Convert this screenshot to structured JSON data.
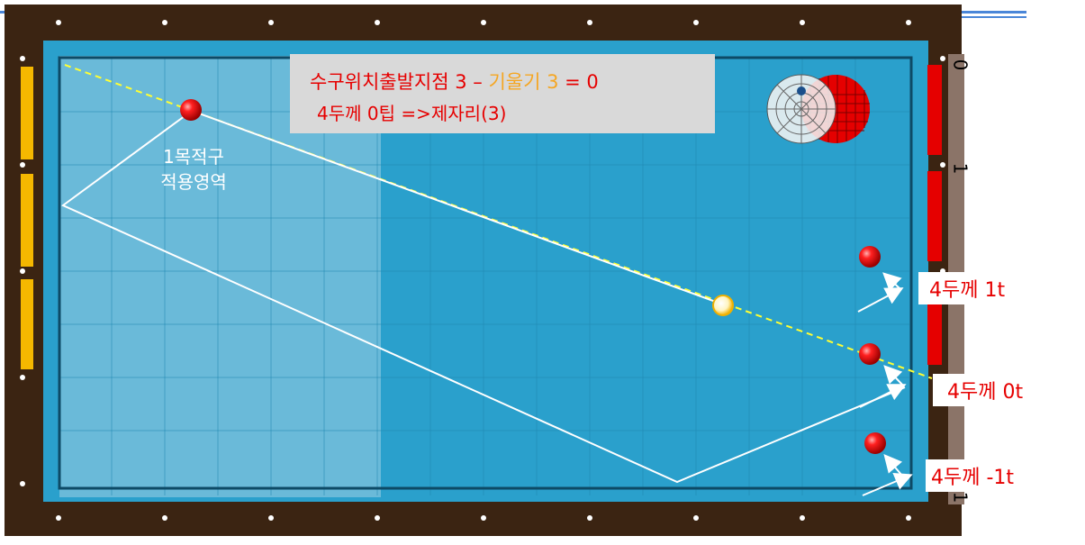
{
  "note": {
    "line1_prefix": "수구위치출발지점 3 – ",
    "line1_highlight": "기울기 3",
    "line1_suffix": " = 0",
    "line2": "4두께 0팁 =>제자리(3)"
  },
  "zone_label": {
    "line1": "1목적구",
    "line2": "적용영역"
  },
  "tags": [
    {
      "text": "4두께 1t"
    },
    {
      "text": "4두께 0t"
    },
    {
      "text": "4두께 -1t"
    }
  ],
  "rail_numbers": [
    "0",
    "1",
    "1"
  ],
  "colors": {
    "frame": "#3b2412",
    "cloth": "#2aa0cc",
    "object_ball": "#e50000",
    "cue_ball": "#fff6c8",
    "aim_line": "#ffff33",
    "path_line": "#ffffff",
    "side_bar_yellow": "#f5b800",
    "side_bar_red": "#e50000"
  },
  "icons": {
    "cue_tip_diagram": "cue-tip-target-icon"
  }
}
